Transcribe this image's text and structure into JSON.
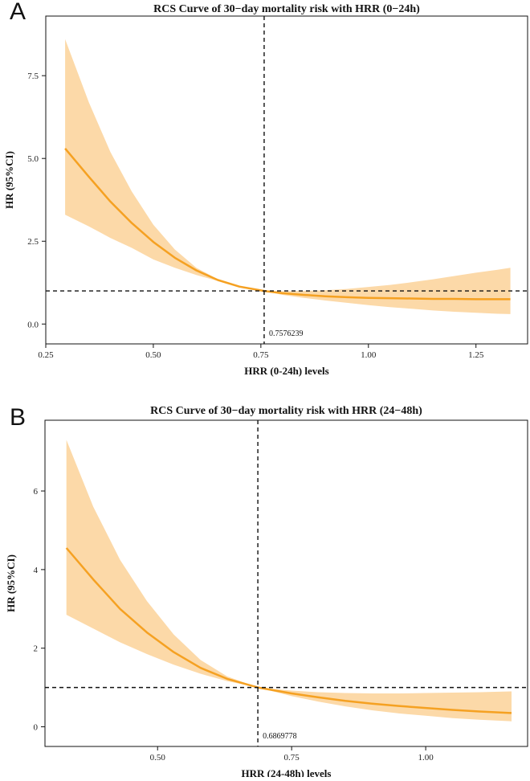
{
  "chart_data": [
    {
      "type": "line",
      "panel_label": "A",
      "title": "RCS Curve of 30−day mortality risk with HRR (0−24h)",
      "xlabel": "HRR (0-24h) levels",
      "ylabel": "HR (95%CI)",
      "xlim": [
        0.25,
        1.37
      ],
      "ylim": [
        -0.6,
        9.3
      ],
      "xticks": [
        0.25,
        0.5,
        0.75,
        1.0,
        1.25
      ],
      "xtick_labels": [
        "0.25",
        "0.50",
        "0.75",
        "1.00",
        "1.25"
      ],
      "yticks": [
        0.0,
        2.5,
        5.0,
        7.5
      ],
      "ytick_labels": [
        "0.0",
        "2.5",
        "5.0",
        "7.5"
      ],
      "reference_x": 0.7576239,
      "reference_x_label": "0.7576239",
      "reference_y": 1,
      "series": [
        {
          "name": "HR",
          "x": [
            0.295,
            0.35,
            0.4,
            0.45,
            0.5,
            0.55,
            0.6,
            0.65,
            0.7,
            0.7576,
            0.8,
            0.85,
            0.9,
            0.95,
            1.0,
            1.05,
            1.1,
            1.15,
            1.2,
            1.25,
            1.3,
            1.33
          ],
          "y": [
            5.3,
            4.45,
            3.7,
            3.05,
            2.48,
            2.0,
            1.62,
            1.33,
            1.13,
            1.0,
            0.93,
            0.88,
            0.84,
            0.81,
            0.79,
            0.78,
            0.77,
            0.76,
            0.76,
            0.75,
            0.75,
            0.75
          ]
        },
        {
          "name": "Upper 95% CI",
          "x": [
            0.295,
            0.35,
            0.4,
            0.45,
            0.5,
            0.55,
            0.6,
            0.65,
            0.7,
            0.7576,
            0.8,
            0.85,
            0.9,
            0.95,
            1.0,
            1.05,
            1.1,
            1.15,
            1.2,
            1.25,
            1.3,
            1.33
          ],
          "y": [
            8.6,
            6.7,
            5.2,
            4.0,
            3.0,
            2.25,
            1.7,
            1.35,
            1.12,
            1.0,
            0.99,
            1.0,
            1.02,
            1.06,
            1.12,
            1.18,
            1.26,
            1.35,
            1.45,
            1.55,
            1.64,
            1.7
          ]
        },
        {
          "name": "Lower 95% CI",
          "x": [
            0.295,
            0.35,
            0.4,
            0.45,
            0.5,
            0.55,
            0.6,
            0.65,
            0.7,
            0.7576,
            0.8,
            0.85,
            0.9,
            0.95,
            1.0,
            1.05,
            1.1,
            1.15,
            1.2,
            1.25,
            1.3,
            1.33
          ],
          "y": [
            3.3,
            2.95,
            2.6,
            2.3,
            1.95,
            1.7,
            1.48,
            1.3,
            1.14,
            1.0,
            0.88,
            0.79,
            0.71,
            0.64,
            0.57,
            0.51,
            0.46,
            0.41,
            0.37,
            0.34,
            0.31,
            0.3
          ]
        }
      ]
    },
    {
      "type": "line",
      "panel_label": "B",
      "title": "RCS Curve of 30−day mortality risk with HRR (24−48h)",
      "xlabel": "HRR (24-48h) levels",
      "ylabel": "HR (95%CI)",
      "xlim": [
        0.29,
        1.19
      ],
      "ylim": [
        -0.5,
        7.8
      ],
      "xticks": [
        0.5,
        0.75,
        1.0
      ],
      "xtick_labels": [
        "0.50",
        "0.75",
        "1.00"
      ],
      "yticks": [
        0,
        2,
        4,
        6
      ],
      "ytick_labels": [
        "0",
        "2",
        "4",
        "6"
      ],
      "reference_x": 0.6869778,
      "reference_x_label": "0.6869778",
      "reference_y": 1,
      "series": [
        {
          "name": "HR",
          "x": [
            0.33,
            0.38,
            0.43,
            0.48,
            0.53,
            0.58,
            0.63,
            0.687,
            0.75,
            0.8,
            0.85,
            0.9,
            0.95,
            1.0,
            1.05,
            1.1,
            1.16
          ],
          "y": [
            4.55,
            3.75,
            3.0,
            2.4,
            1.9,
            1.5,
            1.22,
            1.0,
            0.85,
            0.75,
            0.66,
            0.59,
            0.53,
            0.48,
            0.43,
            0.39,
            0.35
          ]
        },
        {
          "name": "Upper 95% CI",
          "x": [
            0.33,
            0.38,
            0.43,
            0.48,
            0.53,
            0.58,
            0.63,
            0.687,
            0.75,
            0.8,
            0.85,
            0.9,
            0.95,
            1.0,
            1.05,
            1.1,
            1.16
          ],
          "y": [
            7.3,
            5.6,
            4.25,
            3.2,
            2.35,
            1.7,
            1.28,
            1.0,
            0.92,
            0.88,
            0.86,
            0.85,
            0.85,
            0.86,
            0.87,
            0.88,
            0.9
          ]
        },
        {
          "name": "Lower 95% CI",
          "x": [
            0.33,
            0.38,
            0.43,
            0.48,
            0.53,
            0.58,
            0.63,
            0.687,
            0.75,
            0.8,
            0.85,
            0.9,
            0.95,
            1.0,
            1.05,
            1.1,
            1.16
          ],
          "y": [
            2.85,
            2.5,
            2.15,
            1.85,
            1.58,
            1.35,
            1.16,
            1.0,
            0.78,
            0.64,
            0.52,
            0.42,
            0.34,
            0.28,
            0.22,
            0.18,
            0.14
          ]
        }
      ]
    }
  ],
  "colors": {
    "line": "#f5a122",
    "band": "#fcd9a8",
    "axis": "#111111",
    "reference": "#111111"
  }
}
